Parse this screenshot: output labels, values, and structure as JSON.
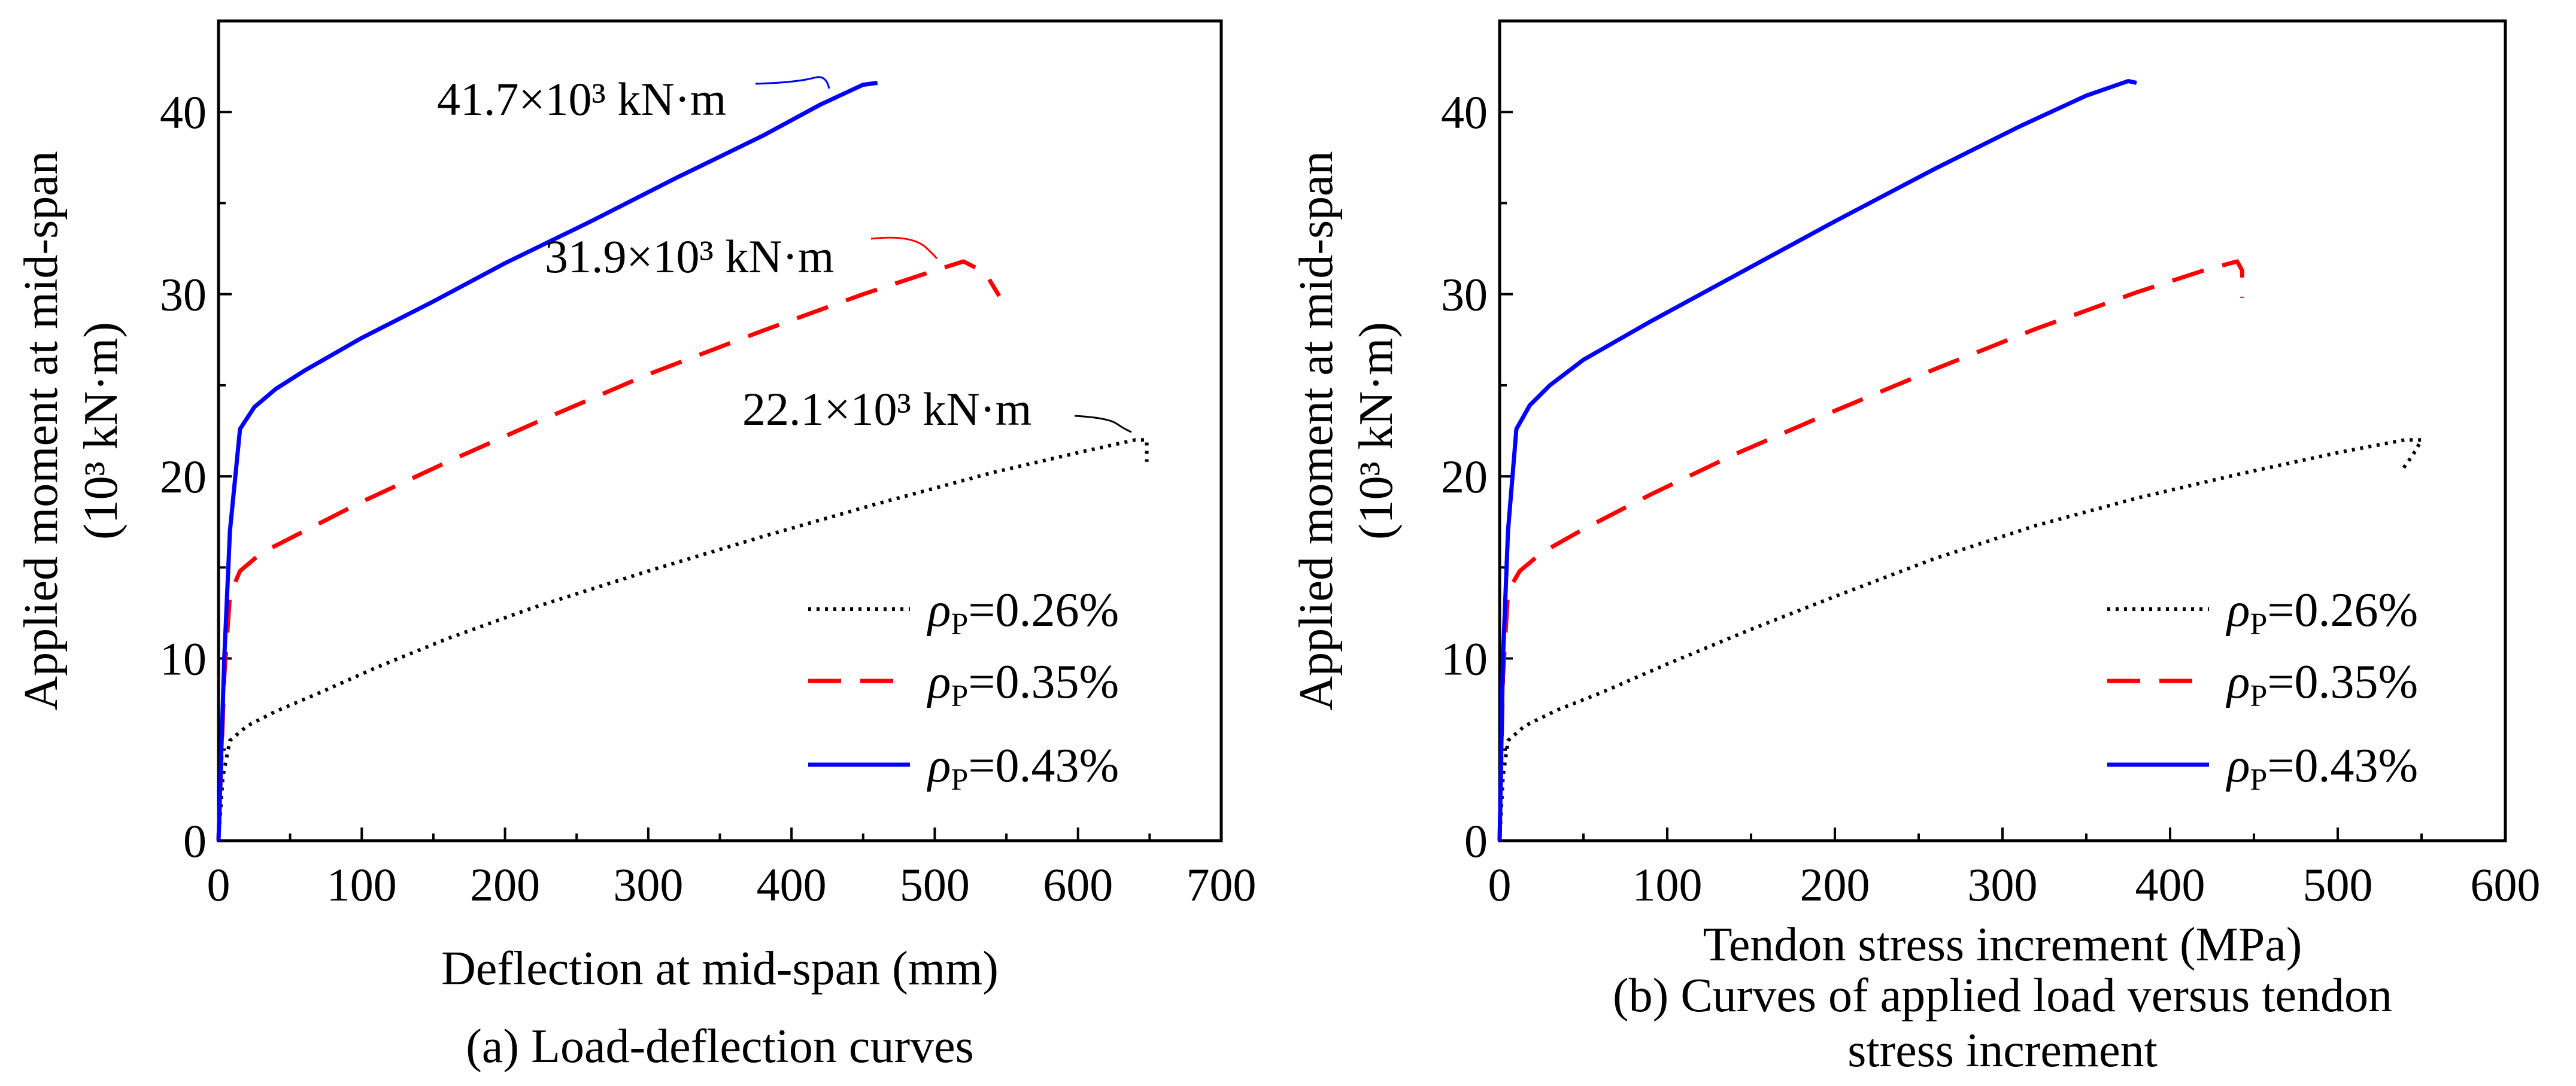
{
  "chart_data": [
    {
      "type": "line",
      "caption": "(a) Load-deflection curves",
      "xlabel": "Deflection at mid-span (mm)",
      "ylabel_line1": "Applied moment at mid-span",
      "ylabel_line2": "(10³ kN·m)",
      "xlim": [
        0,
        700
      ],
      "ylim": [
        0,
        45
      ],
      "xticks": [
        0,
        100,
        200,
        300,
        400,
        500,
        600,
        700
      ],
      "yticks": [
        0,
        10,
        20,
        30,
        40
      ],
      "legend_position": "bottom-right",
      "series": [
        {
          "name": "ρp=0.26%",
          "symbol": "ρ",
          "subscript": "P",
          "value_text": "=0.26%",
          "color": "#000000",
          "style": "dotted",
          "x": [
            0,
            3,
            8,
            20,
            40,
            70,
            110,
            160,
            220,
            300,
            380,
            460,
            540,
            600,
            640,
            648,
            648
          ],
          "y": [
            0,
            3.5,
            5.5,
            6.3,
            7.1,
            8.1,
            9.5,
            11.1,
            12.8,
            14.8,
            16.7,
            18.5,
            20.2,
            21.3,
            22.0,
            22.0,
            20.8
          ]
        },
        {
          "name": "ρp=0.35%",
          "symbol": "ρ",
          "subscript": "P",
          "value_text": "=0.35%",
          "color": "#ff0000",
          "style": "dashed",
          "x": [
            0,
            4,
            8,
            15,
            30,
            60,
            100,
            160,
            220,
            300,
            380,
            450,
            500,
            520,
            535,
            545
          ],
          "y": [
            0,
            9,
            13.5,
            14.8,
            15.8,
            17.0,
            18.6,
            20.8,
            22.9,
            25.6,
            28.0,
            30.0,
            31.3,
            31.8,
            31.2,
            29.9
          ]
        },
        {
          "name": "ρp=0.43%",
          "symbol": "ρ",
          "subscript": "P",
          "value_text": "=0.43%",
          "color": "#0000ff",
          "style": "solid",
          "x": [
            0,
            4,
            8,
            15,
            25,
            40,
            60,
            100,
            150,
            200,
            260,
            320,
            380,
            420,
            450,
            460
          ],
          "y": [
            0,
            10,
            17,
            22.6,
            23.8,
            24.8,
            25.8,
            27.6,
            29.6,
            31.7,
            34.0,
            36.4,
            38.7,
            40.4,
            41.5,
            41.6
          ]
        }
      ],
      "annotations": [
        {
          "text": "41.7×10³ kN·m",
          "color": "#0000ff",
          "x": 460,
          "y": 41.7
        },
        {
          "text": "31.9×10³ kN·m",
          "color": "#ff0000",
          "x": 520,
          "y": 31.9
        },
        {
          "text": "22.1×10³ kN·m",
          "color": "#000000",
          "x": 645,
          "y": 22.1
        }
      ]
    },
    {
      "type": "line",
      "caption_line1": "(b) Curves of applied load versus tendon",
      "caption_line2": "stress increment",
      "xlabel": "Tendon stress increment (MPa)",
      "ylabel_line1": "Applied moment at mid-span",
      "ylabel_line2": "(10³ kN·m)",
      "xlim": [
        0,
        600
      ],
      "ylim": [
        0,
        45
      ],
      "xticks": [
        0,
        100,
        200,
        300,
        400,
        500,
        600
      ],
      "yticks": [
        0,
        10,
        20,
        30,
        40
      ],
      "legend_position": "bottom-right",
      "series": [
        {
          "name": "ρp=0.26%",
          "symbol": "ρ",
          "subscript": "P",
          "value_text": "=0.26%",
          "color": "#000000",
          "style": "dotted",
          "x": [
            0,
            2,
            5,
            15,
            35,
            60,
            100,
            150,
            200,
            260,
            320,
            380,
            440,
            500,
            540,
            550,
            545,
            538
          ],
          "y": [
            0,
            3.5,
            5.5,
            6.3,
            7.2,
            8.1,
            9.7,
            11.6,
            13.4,
            15.5,
            17.3,
            18.8,
            20.1,
            21.3,
            22.0,
            22.0,
            21.2,
            20.3
          ]
        },
        {
          "name": "ρp=0.35%",
          "symbol": "ρ",
          "subscript": "P",
          "value_text": "=0.35%",
          "color": "#ff0000",
          "style": "dashed",
          "x": [
            0,
            2,
            5,
            12,
            25,
            50,
            90,
            140,
            200,
            260,
            320,
            380,
            420,
            440,
            443,
            443
          ],
          "y": [
            0,
            9,
            13.7,
            14.8,
            15.8,
            17.1,
            19.0,
            21.2,
            23.6,
            25.9,
            28.1,
            30.1,
            31.3,
            31.8,
            31.3,
            29.8
          ]
        },
        {
          "name": "ρp=0.43%",
          "symbol": "ρ",
          "subscript": "P",
          "value_text": "=0.43%",
          "color": "#0000ff",
          "style": "solid",
          "x": [
            0,
            2,
            5,
            10,
            18,
            30,
            50,
            90,
            140,
            200,
            260,
            310,
            350,
            375,
            380
          ],
          "y": [
            0,
            10,
            17,
            22.6,
            23.9,
            25.0,
            26.4,
            28.5,
            31.0,
            34.0,
            36.9,
            39.2,
            40.9,
            41.7,
            41.6
          ]
        }
      ]
    }
  ]
}
